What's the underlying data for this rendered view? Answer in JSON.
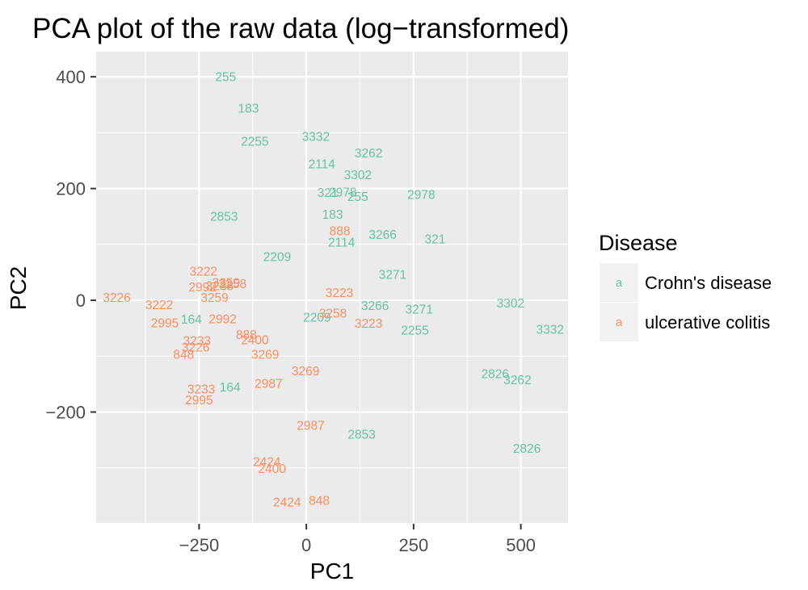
{
  "chart_data": {
    "type": "scatter",
    "title": "PCA plot of the raw data (log−transformed)",
    "xlabel": "PC1",
    "ylabel": "PC2",
    "xlim": [
      -490,
      610
    ],
    "ylim": [
      -400,
      445
    ],
    "x_ticks": [
      -250,
      0,
      250,
      500
    ],
    "x_tick_labels": [
      "−250",
      "0",
      "250",
      "500"
    ],
    "y_ticks": [
      -200,
      0,
      200,
      400
    ],
    "y_tick_labels": [
      "−200",
      "0",
      "200",
      "400"
    ],
    "grid": true,
    "legend": {
      "title": "Disease",
      "placement": "right",
      "key_glyph": "a",
      "entries": [
        "Crohn's disease",
        "ulcerative colitis"
      ]
    },
    "colors": {
      "Crohn's disease": "#66c2a5",
      "ulcerative colitis": "#fc8d62"
    },
    "series": [
      {
        "name": "Crohn's disease",
        "points": [
          {
            "x": -188,
            "y": 400,
            "label": "255"
          },
          {
            "x": -135,
            "y": 344,
            "label": "183"
          },
          {
            "x": -120,
            "y": 285,
            "label": "2255"
          },
          {
            "x": 22,
            "y": 293,
            "label": "3332"
          },
          {
            "x": 145,
            "y": 264,
            "label": "3262"
          },
          {
            "x": 36,
            "y": 244,
            "label": "2114"
          },
          {
            "x": 120,
            "y": 225,
            "label": "3302"
          },
          {
            "x": 50,
            "y": 193,
            "label": "321"
          },
          {
            "x": 85,
            "y": 194,
            "label": "2978"
          },
          {
            "x": 120,
            "y": 186,
            "label": "255"
          },
          {
            "x": 268,
            "y": 189,
            "label": "2978"
          },
          {
            "x": -192,
            "y": 150,
            "label": "2853"
          },
          {
            "x": 61,
            "y": 154,
            "label": "183"
          },
          {
            "x": 82,
            "y": 104,
            "label": "2114"
          },
          {
            "x": 178,
            "y": 118,
            "label": "3266"
          },
          {
            "x": 300,
            "y": 110,
            "label": "321"
          },
          {
            "x": -68,
            "y": 78,
            "label": "2209"
          },
          {
            "x": 201,
            "y": 46,
            "label": "3271"
          },
          {
            "x": 476,
            "y": -5,
            "label": "3302"
          },
          {
            "x": 160,
            "y": -9,
            "label": "3266"
          },
          {
            "x": 263,
            "y": -16,
            "label": "3271"
          },
          {
            "x": -268,
            "y": -34,
            "label": "164"
          },
          {
            "x": 25,
            "y": -30,
            "label": "2209"
          },
          {
            "x": 568,
            "y": -52,
            "label": "3332"
          },
          {
            "x": 253,
            "y": -53,
            "label": "2255"
          },
          {
            "x": 440,
            "y": -131,
            "label": "2826"
          },
          {
            "x": 492,
            "y": -142,
            "label": "3262"
          },
          {
            "x": -178,
            "y": -155,
            "label": "164"
          },
          {
            "x": 129,
            "y": -240,
            "label": "2853"
          },
          {
            "x": 514,
            "y": -265,
            "label": "2826"
          }
        ]
      },
      {
        "name": "ulcerative colitis",
        "points": [
          {
            "x": -240,
            "y": 52,
            "label": "3222"
          },
          {
            "x": -187,
            "y": 32,
            "label": "3259"
          },
          {
            "x": -172,
            "y": 30,
            "label": "3258"
          },
          {
            "x": -242,
            "y": 24,
            "label": "2992"
          },
          {
            "x": -202,
            "y": 26,
            "label": "3238"
          },
          {
            "x": 78,
            "y": 124,
            "label": "888"
          },
          {
            "x": -442,
            "y": 5,
            "label": "3226"
          },
          {
            "x": -214,
            "y": 5,
            "label": "3259"
          },
          {
            "x": 77,
            "y": 14,
            "label": "3223"
          },
          {
            "x": -343,
            "y": -8,
            "label": "3222"
          },
          {
            "x": 62,
            "y": -23,
            "label": "3258"
          },
          {
            "x": -330,
            "y": -40,
            "label": "2995"
          },
          {
            "x": -195,
            "y": -33,
            "label": "2992"
          },
          {
            "x": 145,
            "y": -41,
            "label": "3223"
          },
          {
            "x": -140,
            "y": -61,
            "label": "888"
          },
          {
            "x": -120,
            "y": -71,
            "label": "2400"
          },
          {
            "x": -255,
            "y": -72,
            "label": "3233"
          },
          {
            "x": -258,
            "y": -84,
            "label": "3226"
          },
          {
            "x": -286,
            "y": -97,
            "label": "848"
          },
          {
            "x": -96,
            "y": -97,
            "label": "3269"
          },
          {
            "x": -2,
            "y": -126,
            "label": "3269"
          },
          {
            "x": -88,
            "y": -149,
            "label": "2987"
          },
          {
            "x": -245,
            "y": -159,
            "label": "3233"
          },
          {
            "x": -250,
            "y": -178,
            "label": "2995"
          },
          {
            "x": 10,
            "y": -224,
            "label": "2987"
          },
          {
            "x": -92,
            "y": -289,
            "label": "2424"
          },
          {
            "x": -80,
            "y": -301,
            "label": "2400"
          },
          {
            "x": -45,
            "y": -361,
            "label": "2424"
          },
          {
            "x": 30,
            "y": -358,
            "label": "848"
          }
        ]
      }
    ]
  }
}
